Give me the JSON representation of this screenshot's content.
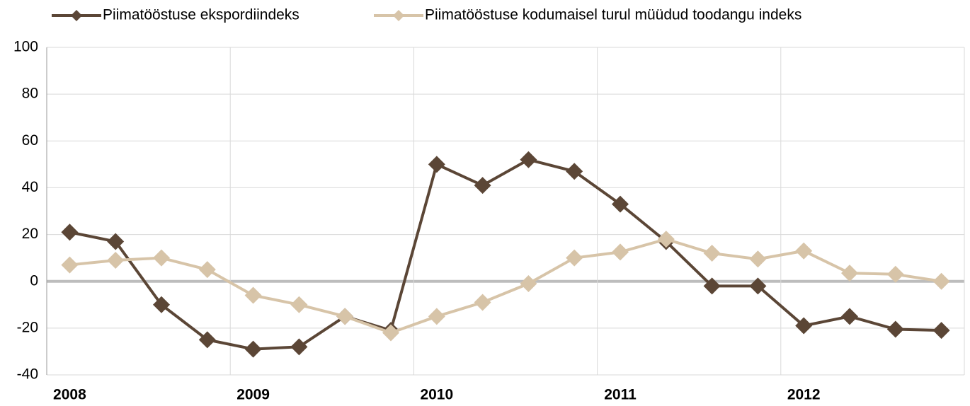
{
  "chart_data": {
    "type": "line",
    "categories": [
      "2008",
      null,
      null,
      null,
      "2009",
      null,
      null,
      null,
      "2010",
      null,
      null,
      null,
      "2011",
      null,
      null,
      null,
      "2012",
      null,
      null,
      null
    ],
    "series": [
      {
        "name": "Piimatööstuse ekspordiindeks",
        "color": "#5b4636",
        "values": [
          21,
          17,
          -10,
          -25,
          -29,
          -28,
          -15,
          -21,
          50,
          41,
          52,
          47,
          33,
          17,
          -2,
          -2,
          -19,
          -15,
          -20.5,
          -21
        ]
      },
      {
        "name": "Piimatööstuse kodumaisel turul müüdud toodangu indeks",
        "color": "#d7c4a8",
        "values": [
          7,
          9,
          10,
          5,
          -6,
          -10,
          -15,
          -22,
          -15,
          -9,
          -1,
          10,
          12.5,
          18,
          12,
          9.5,
          13,
          3.5,
          3,
          0
        ]
      }
    ],
    "ylim": [
      -40,
      100
    ],
    "yticks": [
      -40,
      -20,
      0,
      20,
      40,
      60,
      80,
      100
    ],
    "grid": true,
    "legend": "top"
  }
}
